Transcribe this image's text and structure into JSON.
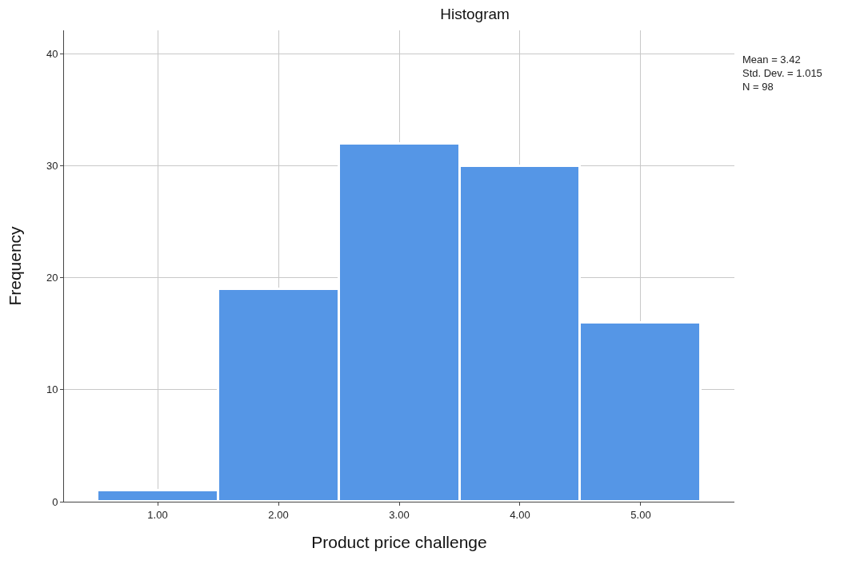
{
  "chart_data": {
    "type": "histogram",
    "title": "Histogram",
    "xlabel": "Product price challenge",
    "ylabel": "Frequency",
    "bins": [
      0.5,
      1.5,
      2.5,
      3.5,
      4.5,
      5.5
    ],
    "values": [
      1,
      19,
      32,
      30,
      16
    ],
    "color": "#5596e6",
    "xlim": [
      0.225,
      5.775
    ],
    "xticks": [
      {
        "value": 1,
        "label": "1.00"
      },
      {
        "value": 2,
        "label": "2.00"
      },
      {
        "value": 3,
        "label": "3.00"
      },
      {
        "value": 4,
        "label": "4.00"
      },
      {
        "value": 5,
        "label": "5.00"
      }
    ],
    "ylim": [
      0,
      42.1
    ],
    "yticks": [
      0,
      10,
      20,
      30,
      40
    ],
    "grid": true,
    "annotations": [
      "Mean = 3.42",
      "Std. Dev. = 1.015",
      "N = 98"
    ]
  }
}
